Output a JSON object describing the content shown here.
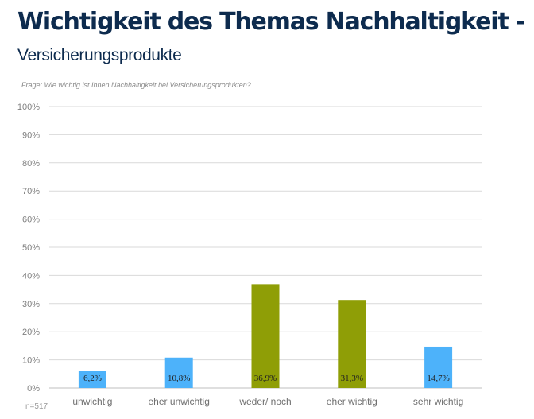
{
  "header": {
    "title": "Wichtigkeit des Themas Nachhaltigkeit -",
    "subtitle": "Versicherungsprodukte",
    "question": "Frage: Wie wichtig ist Ihnen Nachhaltigkeit bei Versicherungsprodukten?"
  },
  "footer": {
    "sample": "n=517"
  },
  "colors": {
    "blue": "#4db2fa",
    "olive": "#8f9e06"
  },
  "chart_data": {
    "type": "bar",
    "categories": [
      "unwichtig",
      "eher unwichtig",
      "weder/ noch",
      "eher wichtig",
      "sehr wichtig"
    ],
    "values": [
      6.2,
      10.8,
      36.9,
      31.3,
      14.7
    ],
    "data_labels": [
      "6,2%",
      "10,8%",
      "36,9%",
      "31,3%",
      "14,7%"
    ],
    "bar_colors": [
      "blue",
      "blue",
      "olive",
      "olive",
      "blue"
    ],
    "ylim": [
      0,
      100
    ],
    "yticks": [
      0,
      10,
      20,
      30,
      40,
      50,
      60,
      70,
      80,
      90,
      100
    ],
    "ytick_labels": [
      "0%",
      "10%",
      "20%",
      "30%",
      "40%",
      "50%",
      "60%",
      "70%",
      "80%",
      "90%",
      "100%"
    ],
    "grid": true,
    "legend": "none"
  }
}
